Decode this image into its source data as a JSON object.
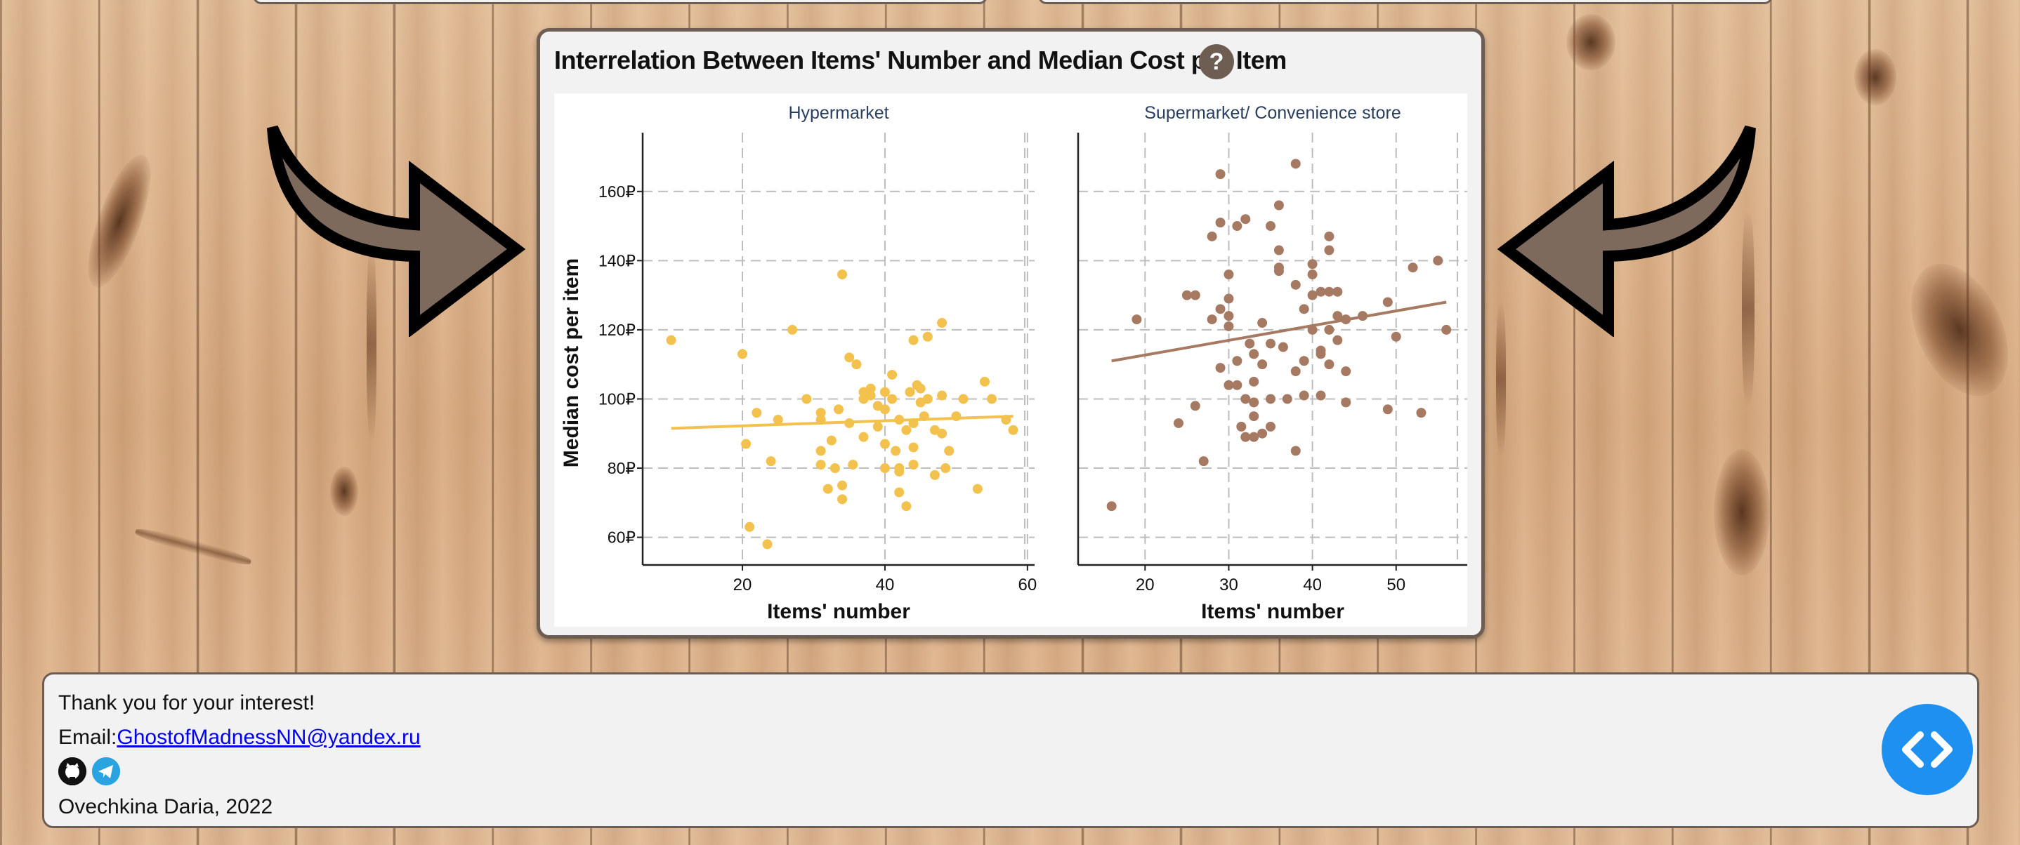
{
  "panel": {
    "title": "Interrelation Between Items' Number and Median Cost per Item",
    "help_label": "?"
  },
  "chart_data": [
    {
      "type": "scatter",
      "title": "Hypermarket",
      "xlabel": "Items' number",
      "ylabel": "Median cost per item",
      "xlim": [
        6,
        61
      ],
      "ylim": [
        52,
        177
      ],
      "xticks": [
        20,
        40,
        60
      ],
      "yticks": [
        60,
        80,
        100,
        120,
        140,
        160
      ],
      "ytick_suffix": "₽",
      "grid": true,
      "color": "#f2c14e",
      "trendline": {
        "x": [
          10,
          58
        ],
        "y": [
          91.5,
          95
        ]
      },
      "points": [
        [
          10,
          117
        ],
        [
          20,
          113
        ],
        [
          20.5,
          87
        ],
        [
          21,
          63
        ],
        [
          22,
          96
        ],
        [
          23.5,
          58
        ],
        [
          24,
          82
        ],
        [
          25,
          94
        ],
        [
          27,
          120
        ],
        [
          29,
          100
        ],
        [
          31,
          96
        ],
        [
          31,
          94
        ],
        [
          31,
          85
        ],
        [
          31,
          81
        ],
        [
          32,
          74
        ],
        [
          32.5,
          88
        ],
        [
          33,
          80
        ],
        [
          33.5,
          97
        ],
        [
          34,
          136
        ],
        [
          34,
          71
        ],
        [
          34,
          75
        ],
        [
          35,
          93
        ],
        [
          35.5,
          81
        ],
        [
          36,
          110
        ],
        [
          37,
          102
        ],
        [
          37,
          100
        ],
        [
          38,
          103
        ],
        [
          38,
          101
        ],
        [
          39,
          98
        ],
        [
          39,
          92
        ],
        [
          40,
          102
        ],
        [
          40,
          97
        ],
        [
          40,
          87
        ],
        [
          40,
          80
        ],
        [
          41,
          107
        ],
        [
          41,
          100
        ],
        [
          41.5,
          85
        ],
        [
          42,
          94
        ],
        [
          42,
          79
        ],
        [
          42,
          80
        ],
        [
          43,
          91
        ],
        [
          43,
          69
        ],
        [
          43.5,
          102
        ],
        [
          44,
          117
        ],
        [
          44,
          93
        ],
        [
          44,
          86
        ],
        [
          44,
          81
        ],
        [
          44.5,
          104
        ],
        [
          45,
          103
        ],
        [
          45,
          99
        ],
        [
          45.5,
          95
        ],
        [
          46,
          118
        ],
        [
          46,
          100
        ],
        [
          47,
          91
        ],
        [
          47,
          78
        ],
        [
          48,
          122
        ],
        [
          48,
          101
        ],
        [
          48,
          90
        ],
        [
          48.5,
          80
        ],
        [
          50,
          95
        ],
        [
          51,
          100
        ],
        [
          53,
          74
        ],
        [
          54,
          105
        ],
        [
          55,
          100
        ],
        [
          57,
          94
        ],
        [
          58,
          91
        ],
        [
          35,
          112
        ],
        [
          37,
          89
        ],
        [
          42,
          73
        ],
        [
          49,
          85
        ]
      ]
    },
    {
      "type": "scatter",
      "title": "Supermarket/ Convenience store",
      "xlabel": "Items' number",
      "ylabel": "",
      "xlim": [
        12,
        58.5
      ],
      "ylim": [
        52,
        177
      ],
      "xticks": [
        20,
        30,
        40,
        50
      ],
      "yticks": [
        60,
        80,
        100,
        120,
        140,
        160
      ],
      "grid": true,
      "color": "#a67a62",
      "trendline": {
        "x": [
          16,
          56
        ],
        "y": [
          111,
          128
        ]
      },
      "points": [
        [
          16,
          69
        ],
        [
          19,
          123
        ],
        [
          24,
          93
        ],
        [
          25,
          130
        ],
        [
          26,
          130
        ],
        [
          26,
          98
        ],
        [
          27,
          82
        ],
        [
          28,
          147
        ],
        [
          28,
          123
        ],
        [
          29,
          165
        ],
        [
          29,
          151
        ],
        [
          29,
          126
        ],
        [
          29,
          109
        ],
        [
          30,
          136
        ],
        [
          30,
          129
        ],
        [
          30,
          124
        ],
        [
          30,
          121
        ],
        [
          30,
          104
        ],
        [
          31,
          150
        ],
        [
          31,
          111
        ],
        [
          31,
          104
        ],
        [
          31.5,
          92
        ],
        [
          32,
          152
        ],
        [
          32,
          89
        ],
        [
          32,
          100
        ],
        [
          32.5,
          116
        ],
        [
          33,
          113
        ],
        [
          33,
          105
        ],
        [
          33,
          95
        ],
        [
          33,
          89
        ],
        [
          33,
          99
        ],
        [
          34,
          122
        ],
        [
          34,
          110
        ],
        [
          34,
          90
        ],
        [
          35,
          150
        ],
        [
          35,
          116
        ],
        [
          35,
          100
        ],
        [
          36,
          156
        ],
        [
          36,
          143
        ],
        [
          36,
          138
        ],
        [
          36,
          137
        ],
        [
          36.5,
          115
        ],
        [
          37,
          100
        ],
        [
          38,
          168
        ],
        [
          38,
          133
        ],
        [
          38,
          85
        ],
        [
          39,
          126
        ],
        [
          39,
          111
        ],
        [
          39,
          101
        ],
        [
          40,
          139
        ],
        [
          40,
          136
        ],
        [
          40,
          130
        ],
        [
          40,
          120
        ],
        [
          41,
          114
        ],
        [
          41,
          113
        ],
        [
          41,
          101
        ],
        [
          41,
          131
        ],
        [
          42,
          147
        ],
        [
          42,
          143
        ],
        [
          42,
          131
        ],
        [
          42,
          120
        ],
        [
          42,
          110
        ],
        [
          43,
          131
        ],
        [
          43,
          124
        ],
        [
          43,
          117
        ],
        [
          44,
          123
        ],
        [
          44,
          99
        ],
        [
          46,
          124
        ],
        [
          49,
          128
        ],
        [
          49,
          97
        ],
        [
          50,
          118
        ],
        [
          52,
          138
        ],
        [
          53,
          96
        ],
        [
          55,
          140
        ],
        [
          56,
          120
        ],
        [
          35,
          92
        ],
        [
          38,
          108
        ],
        [
          44,
          108
        ]
      ]
    }
  ],
  "footer": {
    "thanks": "Thank you for your interest!",
    "email_label": "Email:",
    "email": "GhostofMadnessNN@yandex.ru",
    "author": "Ovechkina Daria, 2022",
    "code_label": "< >"
  }
}
